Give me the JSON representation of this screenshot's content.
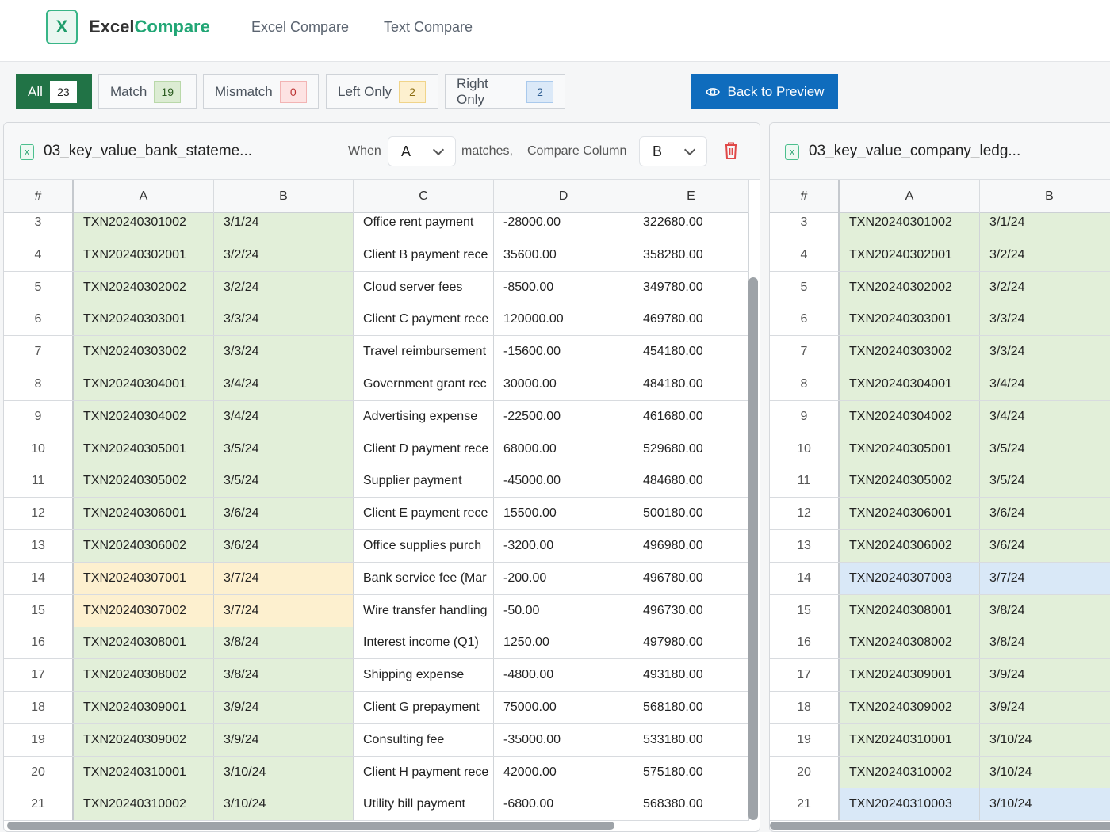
{
  "app": {
    "logo_icon": "X",
    "brand_main": "Excel",
    "brand_accent": "Compare",
    "nav": [
      {
        "label": "Excel Compare"
      },
      {
        "label": "Text Compare"
      }
    ]
  },
  "filters": [
    {
      "label": "All",
      "count": "23"
    },
    {
      "label": "Match",
      "count": "19"
    },
    {
      "label": "Mismatch",
      "count": "0"
    },
    {
      "label": "Left Only",
      "count": "2"
    },
    {
      "label": "Right Only",
      "count": "2"
    }
  ],
  "back_button": {
    "label": "Back to Preview",
    "icon": "eye-icon"
  },
  "colors": {
    "brand": "#217346",
    "accent": "#21a675",
    "primary": "#0f6cbd",
    "match": "#e2efd9",
    "left_only": "#fdf0cf",
    "right_only": "#d9e8f7"
  },
  "left_panel": {
    "file_icon": "x",
    "file_name": "03_key_value_bank_stateme...",
    "when_label": "When",
    "when_value": "A",
    "matches_label": "matches,",
    "compare_label": "Compare Column",
    "compare_value": "B",
    "delete_icon": "trash-icon",
    "columns": [
      "#",
      "A",
      "B",
      "C",
      "D",
      "E"
    ],
    "rows": [
      {
        "n": "3",
        "a": "TXN20240301002",
        "b": "3/1/24",
        "c": "Office rent payment",
        "d": "-28000.00",
        "e": "322680.00",
        "status": "match"
      },
      {
        "n": "4",
        "a": "TXN20240302001",
        "b": "3/2/24",
        "c": "Client B payment rece",
        "d": "35600.00",
        "e": "358280.00",
        "status": "match"
      },
      {
        "n": "5",
        "a": "TXN20240302002",
        "b": "3/2/24",
        "c": "Cloud server fees",
        "d": "-8500.00",
        "e": "349780.00",
        "status": "match"
      },
      {
        "n": "6",
        "a": "TXN20240303001",
        "b": "3/3/24",
        "c": "Client C payment rece",
        "d": "120000.00",
        "e": "469780.00",
        "status": "match"
      },
      {
        "n": "7",
        "a": "TXN20240303002",
        "b": "3/3/24",
        "c": "Travel reimbursement",
        "d": "-15600.00",
        "e": "454180.00",
        "status": "match"
      },
      {
        "n": "8",
        "a": "TXN20240304001",
        "b": "3/4/24",
        "c": "Government grant rec",
        "d": "30000.00",
        "e": "484180.00",
        "status": "match"
      },
      {
        "n": "9",
        "a": "TXN20240304002",
        "b": "3/4/24",
        "c": "Advertising expense",
        "d": "-22500.00",
        "e": "461680.00",
        "status": "match"
      },
      {
        "n": "10",
        "a": "TXN20240305001",
        "b": "3/5/24",
        "c": "Client D payment rece",
        "d": "68000.00",
        "e": "529680.00",
        "status": "match"
      },
      {
        "n": "11",
        "a": "TXN20240305002",
        "b": "3/5/24",
        "c": "Supplier payment",
        "d": "-45000.00",
        "e": "484680.00",
        "status": "match"
      },
      {
        "n": "12",
        "a": "TXN20240306001",
        "b": "3/6/24",
        "c": "Client E payment rece",
        "d": "15500.00",
        "e": "500180.00",
        "status": "match"
      },
      {
        "n": "13",
        "a": "TXN20240306002",
        "b": "3/6/24",
        "c": "Office supplies purch",
        "d": "-3200.00",
        "e": "496980.00",
        "status": "match"
      },
      {
        "n": "14",
        "a": "TXN20240307001",
        "b": "3/7/24",
        "c": "Bank service fee (Mar",
        "d": "-200.00",
        "e": "496780.00",
        "status": "left"
      },
      {
        "n": "15",
        "a": "TXN20240307002",
        "b": "3/7/24",
        "c": "Wire transfer handling",
        "d": "-50.00",
        "e": "496730.00",
        "status": "left"
      },
      {
        "n": "16",
        "a": "TXN20240308001",
        "b": "3/8/24",
        "c": "Interest income (Q1)",
        "d": "1250.00",
        "e": "497980.00",
        "status": "match"
      },
      {
        "n": "17",
        "a": "TXN20240308002",
        "b": "3/8/24",
        "c": "Shipping expense",
        "d": "-4800.00",
        "e": "493180.00",
        "status": "match"
      },
      {
        "n": "18",
        "a": "TXN20240309001",
        "b": "3/9/24",
        "c": "Client G prepayment",
        "d": "75000.00",
        "e": "568180.00",
        "status": "match"
      },
      {
        "n": "19",
        "a": "TXN20240309002",
        "b": "3/9/24",
        "c": "Consulting fee",
        "d": "-35000.00",
        "e": "533180.00",
        "status": "match"
      },
      {
        "n": "20",
        "a": "TXN20240310001",
        "b": "3/10/24",
        "c": "Client H payment rece",
        "d": "42000.00",
        "e": "575180.00",
        "status": "match"
      },
      {
        "n": "21",
        "a": "TXN20240310002",
        "b": "3/10/24",
        "c": "Utility bill payment",
        "d": "-6800.00",
        "e": "568380.00",
        "status": "match"
      }
    ]
  },
  "right_panel": {
    "file_icon": "x",
    "file_name": "03_key_value_company_ledg...",
    "columns": [
      "#",
      "A",
      "B"
    ],
    "rows": [
      {
        "n": "3",
        "a": "TXN20240301002",
        "b": "3/1/24",
        "status": "match"
      },
      {
        "n": "4",
        "a": "TXN20240302001",
        "b": "3/2/24",
        "status": "match"
      },
      {
        "n": "5",
        "a": "TXN20240302002",
        "b": "3/2/24",
        "status": "match"
      },
      {
        "n": "6",
        "a": "TXN20240303001",
        "b": "3/3/24",
        "status": "match"
      },
      {
        "n": "7",
        "a": "TXN20240303002",
        "b": "3/3/24",
        "status": "match"
      },
      {
        "n": "8",
        "a": "TXN20240304001",
        "b": "3/4/24",
        "status": "match"
      },
      {
        "n": "9",
        "a": "TXN20240304002",
        "b": "3/4/24",
        "status": "match"
      },
      {
        "n": "10",
        "a": "TXN20240305001",
        "b": "3/5/24",
        "status": "match"
      },
      {
        "n": "11",
        "a": "TXN20240305002",
        "b": "3/5/24",
        "status": "match"
      },
      {
        "n": "12",
        "a": "TXN20240306001",
        "b": "3/6/24",
        "status": "match"
      },
      {
        "n": "13",
        "a": "TXN20240306002",
        "b": "3/6/24",
        "status": "match"
      },
      {
        "n": "14",
        "a": "TXN20240307003",
        "b": "3/7/24",
        "status": "right"
      },
      {
        "n": "15",
        "a": "TXN20240308001",
        "b": "3/8/24",
        "status": "match"
      },
      {
        "n": "16",
        "a": "TXN20240308002",
        "b": "3/8/24",
        "status": "match"
      },
      {
        "n": "17",
        "a": "TXN20240309001",
        "b": "3/9/24",
        "status": "match"
      },
      {
        "n": "18",
        "a": "TXN20240309002",
        "b": "3/9/24",
        "status": "match"
      },
      {
        "n": "19",
        "a": "TXN20240310001",
        "b": "3/10/24",
        "status": "match"
      },
      {
        "n": "20",
        "a": "TXN20240310002",
        "b": "3/10/24",
        "status": "match"
      },
      {
        "n": "21",
        "a": "TXN20240310003",
        "b": "3/10/24",
        "status": "right"
      }
    ]
  }
}
